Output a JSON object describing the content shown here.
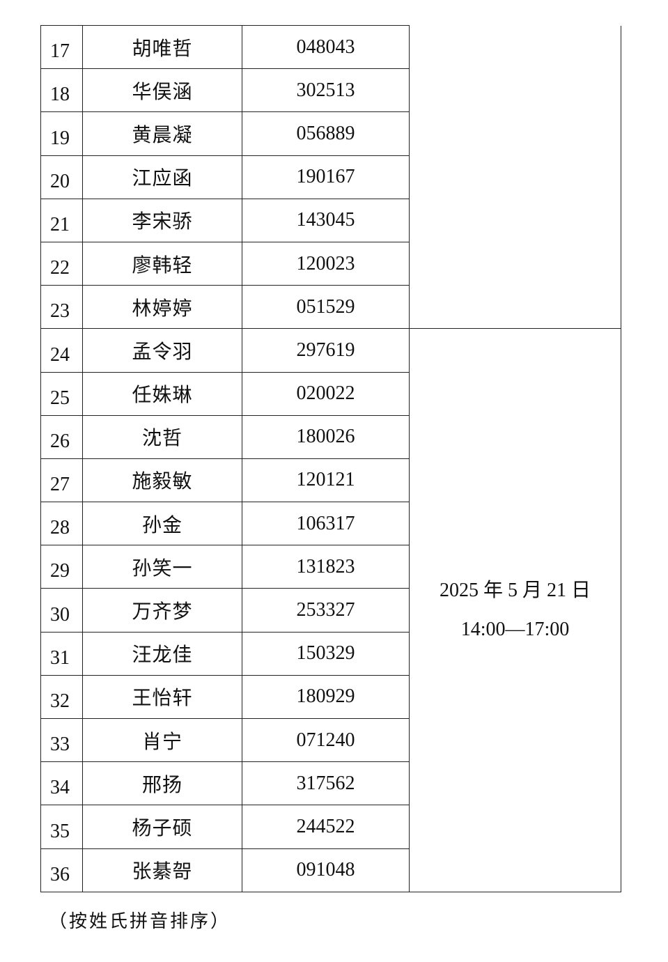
{
  "rows": [
    {
      "no": "17",
      "name": "胡唯哲",
      "id": "048043"
    },
    {
      "no": "18",
      "name": "华俣涵",
      "id": "302513"
    },
    {
      "no": "19",
      "name": "黄晨凝",
      "id": "056889"
    },
    {
      "no": "20",
      "name": "江应函",
      "id": "190167"
    },
    {
      "no": "21",
      "name": "李宋骄",
      "id": "143045"
    },
    {
      "no": "22",
      "name": "廖韩轻",
      "id": "120023"
    },
    {
      "no": "23",
      "name": "林婷婷",
      "id": "051529"
    },
    {
      "no": "24",
      "name": "孟令羽",
      "id": "297619"
    },
    {
      "no": "25",
      "name": "任姝琳",
      "id": "020022"
    },
    {
      "no": "26",
      "name": "沈哲",
      "id": "180026"
    },
    {
      "no": "27",
      "name": "施毅敏",
      "id": "120121"
    },
    {
      "no": "28",
      "name": "孙金",
      "id": "106317"
    },
    {
      "no": "29",
      "name": "孙笑一",
      "id": "131823"
    },
    {
      "no": "30",
      "name": "万齐梦",
      "id": "253327"
    },
    {
      "no": "31",
      "name": "汪龙佳",
      "id": "150329"
    },
    {
      "no": "32",
      "name": "王怡轩",
      "id": "180929"
    },
    {
      "no": "33",
      "name": "肖宁",
      "id": "071240"
    },
    {
      "no": "34",
      "name": "邢扬",
      "id": "317562"
    },
    {
      "no": "35",
      "name": "杨子硕",
      "id": "244522"
    },
    {
      "no": "36",
      "name": "张綦哿",
      "id": "091048"
    }
  ],
  "schedule": {
    "date": "2025 年 5 月 21 日",
    "time": "14:00—17:00"
  },
  "note": "（按姓氏拼音排序）"
}
